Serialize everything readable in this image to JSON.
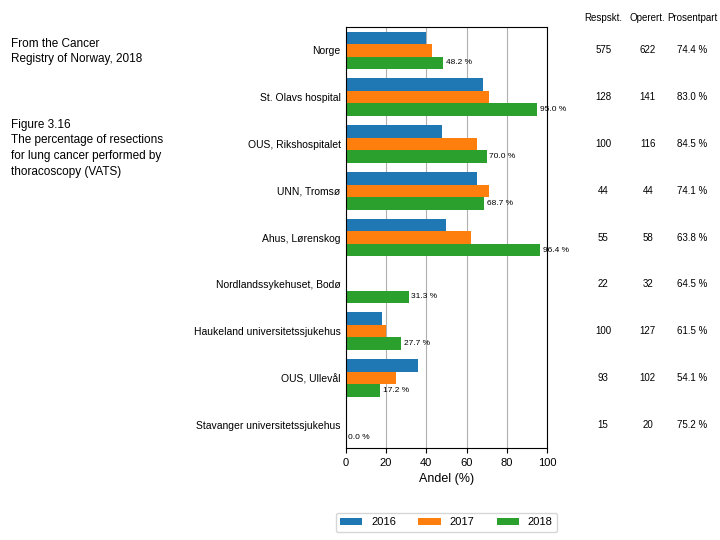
{
  "chart_data": {
    "type": "bar",
    "orientation": "horizontal",
    "title": "Figure 3.16\nThe percentage of resections\nfor lung cancer performed by\nthoracoscopy (VATS)",
    "subtitle": "From the Cancer\nRegistry of Norway, 2018",
    "x_label": "Andel (%)",
    "categories": [
      "Norge",
      "St. Olavs hospital",
      "OUS, Rikshospitalet",
      "UNN, Tromsø",
      "Ahus, Lørenskog",
      "Nordlandssykehuset, Bodø",
      "Haukeland universitetssjukehus",
      "OUS, Ullevål",
      "Stavanger universitetssjukehus"
    ],
    "series": [
      {
        "name": "2016",
        "values": [
          40,
          68,
          48,
          65,
          50,
          0,
          18,
          36,
          0
        ]
      },
      {
        "name": "2017",
        "values": [
          43,
          71,
          65,
          71,
          62,
          0,
          20,
          25,
          0
        ]
      },
      {
        "name": "2018",
        "values": [
          48.2,
          95.0,
          70.0,
          68.7,
          96.4,
          31.3,
          27.7,
          17.2,
          0.0
        ],
        "data_labels": true,
        "value_labels": [
          "48.2 %",
          "95.0 %",
          "70.0 %",
          "68.7 %",
          "96.4 %",
          "31.3 %",
          "27.7 %",
          "17.2 %",
          "0.0 %"
        ]
      }
    ],
    "xlim": [
      0,
      100
    ],
    "xticks": [
      0,
      20,
      40,
      60,
      80,
      100
    ],
    "grid": true,
    "legend": "lower center",
    "table": {
      "columns": [
        {
          "name": "Respskt.",
          "values": [
            575,
            128,
            100,
            44,
            55,
            22,
            100,
            93,
            15
          ]
        },
        {
          "name": "Operert.",
          "values": [
            622,
            141,
            116,
            44,
            58,
            32,
            127,
            102,
            20
          ]
        },
        {
          "name": "Prosentpart",
          "values": [
            74.4,
            83.0,
            84.5,
            74.1,
            63.8,
            64.5,
            61.5,
            54.1,
            75.2
          ],
          "value_labels": [
            "74.4 %",
            "83.0 %",
            "84.5 %",
            "74.1 %",
            "63.8 %",
            "64.5 %",
            "61.5 %",
            "54.1 %",
            "75.2 %"
          ]
        }
      ]
    }
  }
}
